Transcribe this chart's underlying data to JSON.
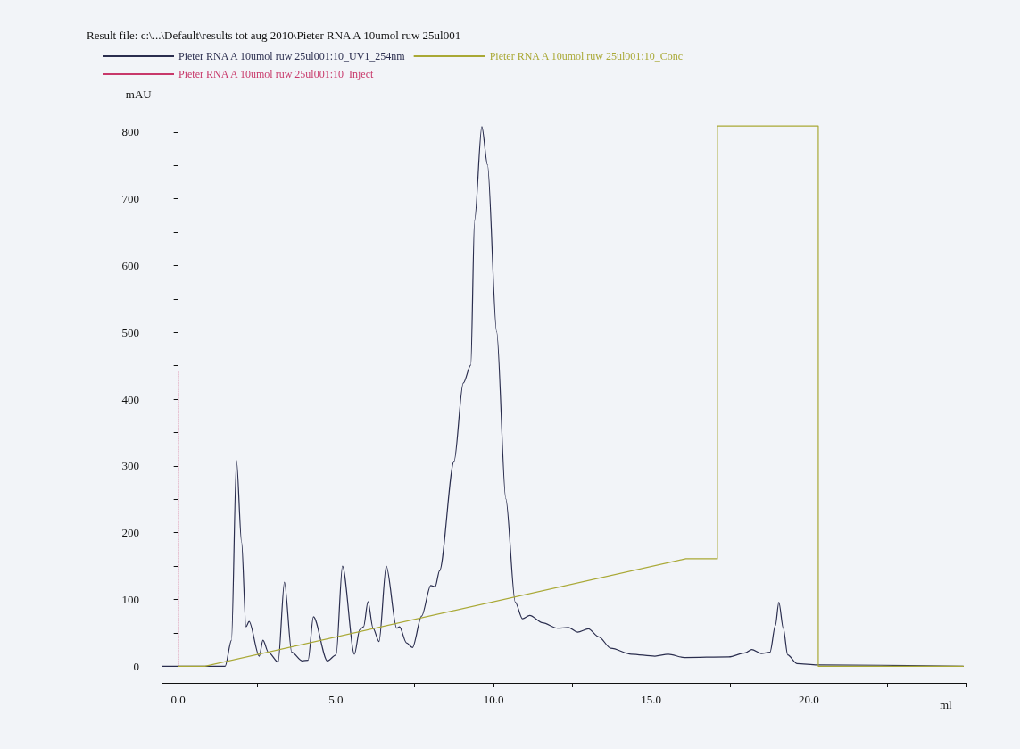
{
  "chart_data": {
    "type": "line",
    "title": "Result file: c:\\...\\Default\\results tot aug 2010\\Pieter RNA A 10umol ruw 25ul001",
    "xlabel": "ml",
    "ylabel": "mAU",
    "xlim": [
      -0.5,
      25
    ],
    "xticks": [
      {
        "value": 0,
        "label": "0.0"
      },
      {
        "value": 2.5,
        "label": null
      },
      {
        "value": 5,
        "label": "5.0"
      },
      {
        "value": 7.5,
        "label": null
      },
      {
        "value": 10,
        "label": "10.0"
      },
      {
        "value": 12.5,
        "label": null
      },
      {
        "value": 15,
        "label": "15.0"
      },
      {
        "value": 17.5,
        "label": null
      },
      {
        "value": 20,
        "label": "20.0"
      },
      {
        "value": 22.5,
        "label": null
      },
      {
        "value": 25,
        "label": null
      }
    ],
    "ylim": [
      -25,
      840
    ],
    "yticks": [
      0,
      {
        "value": 50,
        "label": null
      },
      100,
      {
        "value": 150,
        "label": null
      },
      200,
      {
        "value": 250,
        "label": null
      },
      300,
      {
        "value": 350,
        "label": null
      },
      400,
      {
        "value": 450,
        "label": null
      },
      500,
      {
        "value": 550,
        "label": null
      },
      600,
      {
        "value": 650,
        "label": null
      },
      700,
      {
        "value": 750,
        "label": null
      },
      800
    ],
    "legend": "top",
    "marker": "none",
    "line_style": "solid",
    "series": [
      {
        "name": "Pieter RNA A 10umol ruw 25ul001:10_UV1_254nm",
        "color": "#2a2d4e",
        "x": [
          -0.5,
          1.49,
          1.69,
          1.85,
          2.01,
          2.15,
          2.25,
          2.57,
          2.69,
          2.86,
          3.17,
          3.37,
          3.6,
          3.93,
          4.12,
          4.29,
          4.73,
          5.01,
          5.21,
          5.59,
          5.76,
          5.88,
          6.02,
          6.18,
          6.37,
          6.6,
          6.93,
          7.02,
          7.24,
          7.43,
          7.72,
          8.01,
          8.15,
          8.29,
          8.75,
          9.04,
          9.28,
          9.4,
          9.63,
          9.81,
          10.1,
          10.39,
          10.69,
          10.92,
          11.15,
          11.56,
          12.03,
          12.38,
          12.67,
          13.01,
          13.34,
          13.72,
          14.37,
          15.12,
          15.54,
          16.06,
          17.46,
          17.98,
          18.19,
          18.49,
          18.77,
          18.94,
          19.05,
          19.19,
          19.33,
          19.62,
          20.27,
          24.9
        ],
        "values": [
          0,
          0,
          39,
          308,
          186,
          59,
          67,
          15,
          39,
          21,
          6,
          126,
          21,
          8,
          9,
          74,
          8,
          17,
          150,
          18,
          55,
          59,
          97,
          57,
          37,
          150,
          57,
          59,
          35,
          28,
          75,
          121,
          119,
          143,
          307,
          424,
          451,
          668,
          808,
          751,
          501,
          251,
          96,
          71,
          76,
          65,
          57,
          58,
          51,
          56,
          44,
          27,
          18,
          15,
          18,
          13,
          14,
          20,
          25,
          19,
          21,
          61,
          96,
          57,
          17,
          4,
          2,
          0
        ]
      },
      {
        "name": "Pieter RNA A 10umol ruw 25ul001:10_Conc",
        "color": "#a9a835",
        "x": [
          0,
          0.85,
          16.1,
          17.1,
          17.1,
          20.3,
          20.3,
          24.9
        ],
        "values": [
          0,
          0,
          161,
          161,
          809,
          809,
          0,
          0
        ]
      },
      {
        "name": "Pieter RNA A 10umol ruw 25ul001:10_Inject",
        "color": "#c8386a",
        "line_style": "dotted",
        "x": [
          0,
          0
        ],
        "values": [
          0,
          441
        ]
      }
    ]
  }
}
